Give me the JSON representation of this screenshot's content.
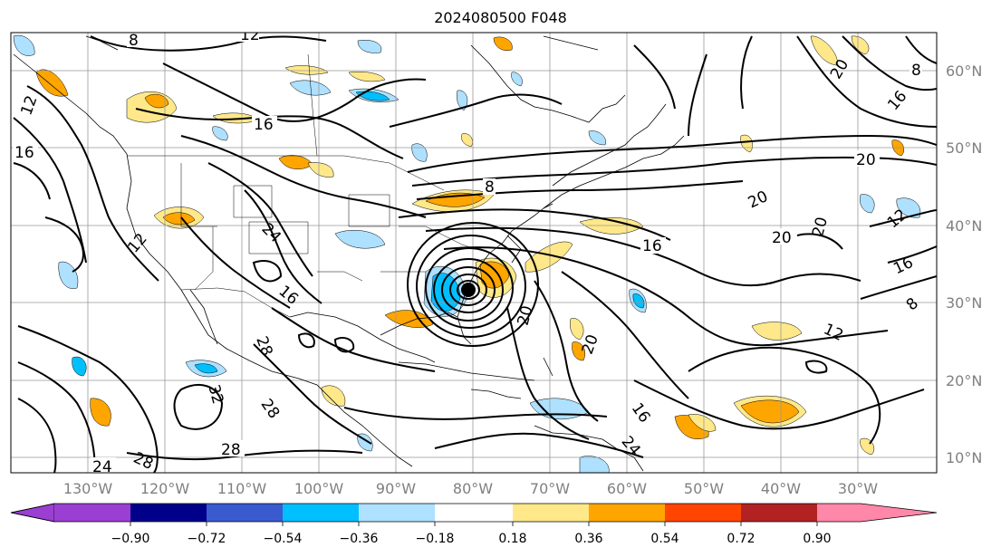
{
  "title": "2024080500 F048",
  "map": {
    "lat_labels": [
      "60°N",
      "50°N",
      "40°N",
      "30°N",
      "20°N",
      "10°N"
    ],
    "lon_labels": [
      "130°W",
      "120°W",
      "110°W",
      "100°W",
      "90°W",
      "80°W",
      "70°W",
      "60°W",
      "50°W",
      "40°W",
      "30°W"
    ],
    "contour_labels": [
      "12",
      "8",
      "16",
      "16",
      "16",
      "24",
      "16",
      "8",
      "20",
      "20",
      "20",
      "20",
      "20",
      "16",
      "16",
      "12",
      "8",
      "12",
      "20",
      "20",
      "16",
      "24",
      "28",
      "28",
      "32",
      "28",
      "28",
      "24",
      "8",
      "12",
      "12"
    ]
  },
  "colorbar": {
    "ticks": [
      "−0.90",
      "−0.72",
      "−0.54",
      "−0.36",
      "−0.18",
      "0.18",
      "0.36",
      "0.54",
      "0.72",
      "0.90"
    ],
    "colors": [
      "#9a3fd2",
      "#00008b",
      "#3a5bd0",
      "#00bfff",
      "#aee0ff",
      "#ffffff",
      "#ffe88a",
      "#ffa500",
      "#ff4500",
      "#b22222",
      "#ff88aa"
    ]
  }
}
